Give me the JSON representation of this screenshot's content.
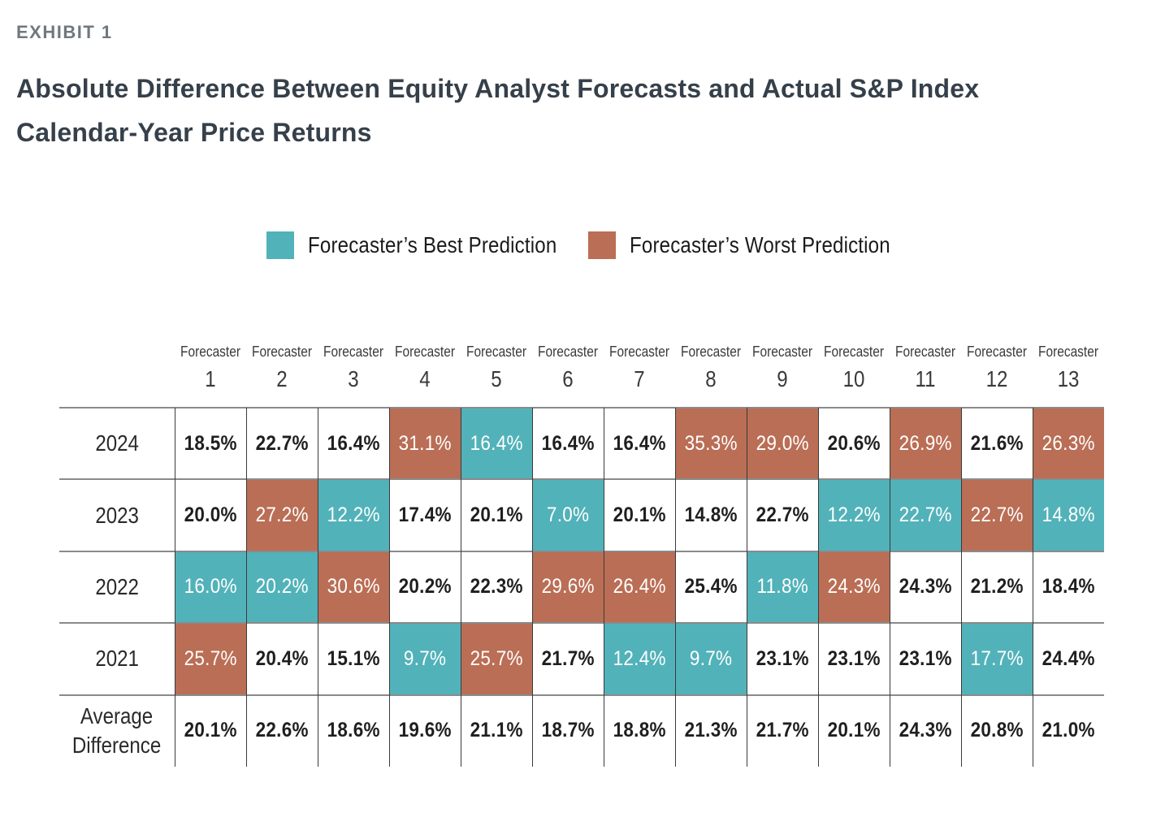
{
  "exhibit_label": "EXHIBIT 1",
  "title_line1": "Absolute Difference Between Equity Analyst Forecasts and Actual S&P Index",
  "title_line2": "Calendar-Year Price Returns",
  "colors": {
    "best": "#52B2B9",
    "worst": "#BA6E55",
    "neutral": "#FFFFFF"
  },
  "legend": [
    {
      "key": "best",
      "label": "Forecaster’s Best Prediction"
    },
    {
      "key": "worst",
      "label": "Forecaster’s Worst Prediction"
    }
  ],
  "chart_data": {
    "type": "table",
    "title": "Absolute Difference Between Equity Analyst Forecasts and Actual S&P Index Calendar-Year Price Returns",
    "column_header_prefix": "Forecaster",
    "columns": [
      "1",
      "2",
      "3",
      "4",
      "5",
      "6",
      "7",
      "8",
      "9",
      "10",
      "11",
      "12",
      "13"
    ],
    "rows": [
      {
        "label": "2024",
        "values": [
          "18.5%",
          "22.7%",
          "16.4%",
          "31.1%",
          "16.4%",
          "16.4%",
          "16.4%",
          "35.3%",
          "29.0%",
          "20.6%",
          "26.9%",
          "21.6%",
          "26.3%"
        ],
        "highlight": [
          "",
          "",
          "",
          "worst",
          "best",
          "",
          "",
          "worst",
          "worst",
          "",
          "worst",
          "",
          "worst"
        ]
      },
      {
        "label": "2023",
        "values": [
          "20.0%",
          "27.2%",
          "12.2%",
          "17.4%",
          "20.1%",
          "7.0%",
          "20.1%",
          "14.8%",
          "22.7%",
          "12.2%",
          "22.7%",
          "22.7%",
          "14.8%"
        ],
        "highlight": [
          "",
          "worst",
          "best",
          "",
          "",
          "best",
          "",
          "",
          "",
          "best",
          "best",
          "worst",
          "best"
        ]
      },
      {
        "label": "2022",
        "values": [
          "16.0%",
          "20.2%",
          "30.6%",
          "20.2%",
          "22.3%",
          "29.6%",
          "26.4%",
          "25.4%",
          "11.8%",
          "24.3%",
          "24.3%",
          "21.2%",
          "18.4%"
        ],
        "highlight": [
          "best",
          "best",
          "worst",
          "",
          "",
          "worst",
          "worst",
          "",
          "best",
          "worst",
          "",
          "",
          ""
        ]
      },
      {
        "label": "2021",
        "values": [
          "25.7%",
          "20.4%",
          "15.1%",
          "9.7%",
          "25.7%",
          "21.7%",
          "12.4%",
          "9.7%",
          "23.1%",
          "23.1%",
          "23.1%",
          "17.7%",
          "24.4%"
        ],
        "highlight": [
          "worst",
          "",
          "",
          "best",
          "worst",
          "",
          "best",
          "best",
          "",
          "",
          "",
          "best",
          ""
        ]
      },
      {
        "label_line1": "Average",
        "label_line2": "Difference",
        "values": [
          "20.1%",
          "22.6%",
          "18.6%",
          "19.6%",
          "21.1%",
          "18.7%",
          "18.8%",
          "21.3%",
          "21.7%",
          "20.1%",
          "24.3%",
          "20.8%",
          "21.0%"
        ],
        "highlight": [
          "",
          "",
          "",
          "",
          "",
          "",
          "",
          "",
          "",
          "",
          "",
          "",
          ""
        ]
      }
    ]
  }
}
